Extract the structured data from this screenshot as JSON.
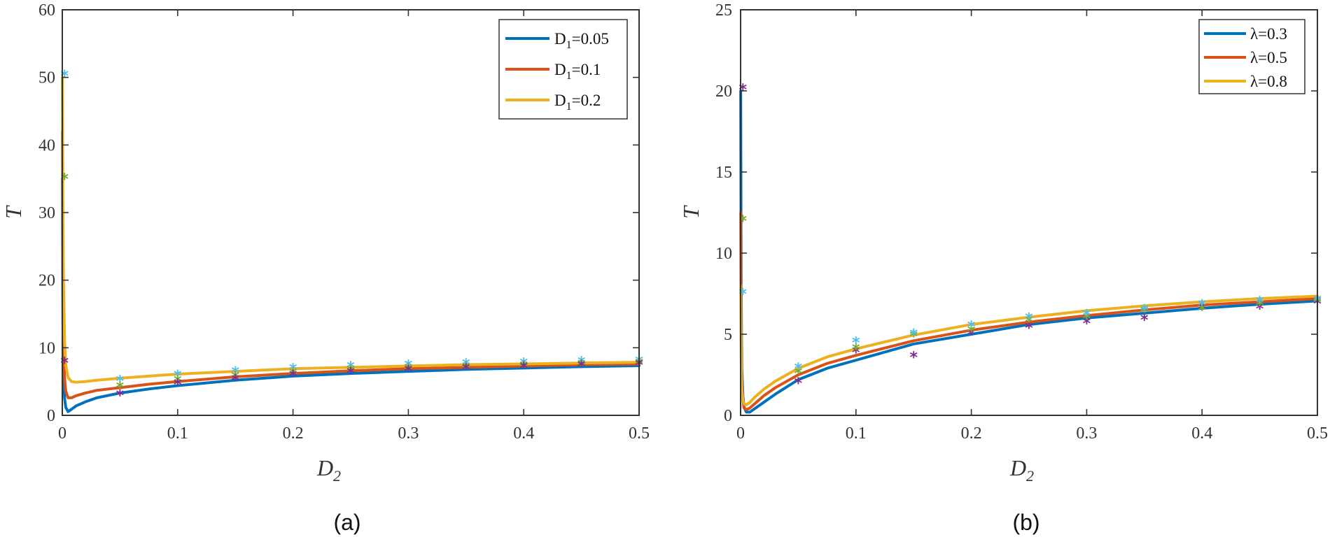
{
  "chart_data": [
    {
      "type": "line",
      "panel": "(a)",
      "xlabel": "D",
      "xlabel_sub": "2",
      "ylabel": "T",
      "xlim": [
        0,
        0.5
      ],
      "ylim": [
        0,
        60
      ],
      "xticks": [
        0,
        0.1,
        0.2,
        0.3,
        0.4,
        0.5
      ],
      "xtick_labels": [
        "0",
        "0.1",
        "0.2",
        "0.3",
        "0.4",
        "0.5"
      ],
      "yticks": [
        0,
        10,
        20,
        30,
        40,
        50,
        60
      ],
      "ytick_labels": [
        "0",
        "10",
        "20",
        "30",
        "40",
        "50",
        "60"
      ],
      "legend_position": "top-right",
      "series": [
        {
          "name": "D1=0.05",
          "label_main": "D",
          "label_sub": "1",
          "label_rest": "=0.05",
          "color": "#0072BD",
          "x": [
            0.0001,
            0.0005,
            0.001,
            0.002,
            0.003,
            0.005,
            0.008,
            0.012,
            0.02,
            0.03,
            0.05,
            0.075,
            0.1,
            0.15,
            0.2,
            0.25,
            0.3,
            0.35,
            0.4,
            0.45,
            0.5
          ],
          "y": [
            35,
            14,
            6,
            2.5,
            1.2,
            0.55,
            0.9,
            1.4,
            2.0,
            2.6,
            3.3,
            3.9,
            4.4,
            5.2,
            5.8,
            6.2,
            6.5,
            6.8,
            7.0,
            7.2,
            7.35
          ]
        },
        {
          "name": "D1=0.1",
          "label_main": "D",
          "label_sub": "1",
          "label_rest": "=0.1",
          "color": "#D95319",
          "x": [
            0.0001,
            0.0005,
            0.001,
            0.002,
            0.003,
            0.005,
            0.008,
            0.012,
            0.02,
            0.03,
            0.05,
            0.075,
            0.1,
            0.15,
            0.2,
            0.25,
            0.3,
            0.35,
            0.4,
            0.45,
            0.5
          ],
          "y": [
            42,
            20,
            10,
            5.5,
            3.6,
            2.6,
            2.6,
            2.9,
            3.3,
            3.7,
            4.1,
            4.6,
            5.0,
            5.7,
            6.2,
            6.6,
            6.9,
            7.1,
            7.3,
            7.5,
            7.6
          ]
        },
        {
          "name": "D1=0.2",
          "label_main": "D",
          "label_sub": "1",
          "label_rest": "=0.2",
          "color": "#EDB120",
          "x": [
            0.0001,
            0.0005,
            0.001,
            0.002,
            0.003,
            0.005,
            0.008,
            0.012,
            0.02,
            0.03,
            0.05,
            0.075,
            0.1,
            0.15,
            0.2,
            0.25,
            0.3,
            0.35,
            0.4,
            0.45,
            0.5
          ],
          "y": [
            50,
            32,
            20,
            11,
            7.5,
            5.6,
            5.0,
            4.9,
            5.0,
            5.2,
            5.5,
            5.8,
            6.1,
            6.5,
            6.9,
            7.1,
            7.3,
            7.5,
            7.6,
            7.75,
            7.85
          ]
        }
      ],
      "markers": [
        {
          "color": "#4DBEEE",
          "x": [
            0.002,
            0.05,
            0.1,
            0.15,
            0.2,
            0.25,
            0.3,
            0.35,
            0.4,
            0.45,
            0.5
          ],
          "y": [
            50.3,
            5.1,
            5.9,
            6.4,
            6.9,
            7.2,
            7.4,
            7.6,
            7.7,
            7.9,
            8.0
          ]
        },
        {
          "color": "#77AC30",
          "x": [
            0.002,
            0.05,
            0.1,
            0.15,
            0.2,
            0.25,
            0.3,
            0.35,
            0.4,
            0.45,
            0.5
          ],
          "y": [
            35.0,
            4.2,
            5.1,
            5.7,
            6.2,
            6.6,
            6.9,
            7.1,
            7.3,
            7.5,
            7.7
          ]
        },
        {
          "color": "#7E2F8E",
          "x": [
            0.002,
            0.05,
            0.1,
            0.15,
            0.2,
            0.25,
            0.3,
            0.35,
            0.4,
            0.45,
            0.5
          ],
          "y": [
            7.8,
            3.0,
            4.6,
            5.3,
            5.9,
            6.3,
            6.6,
            6.9,
            7.1,
            7.3,
            7.5
          ]
        }
      ]
    },
    {
      "type": "line",
      "panel": "(b)",
      "xlabel": "D",
      "xlabel_sub": "2",
      "ylabel": "T",
      "xlim": [
        0,
        0.5
      ],
      "ylim": [
        0,
        25
      ],
      "xticks": [
        0,
        0.1,
        0.2,
        0.3,
        0.4,
        0.5
      ],
      "xtick_labels": [
        "0",
        "0.1",
        "0.2",
        "0.3",
        "0.4",
        "0.5"
      ],
      "yticks": [
        0,
        5,
        10,
        15,
        20,
        25
      ],
      "ytick_labels": [
        "0",
        "5",
        "10",
        "15",
        "20",
        "25"
      ],
      "legend_position": "top-right",
      "series": [
        {
          "name": "λ=0.3",
          "label_main": "λ=0.3",
          "label_sub": "",
          "label_rest": "",
          "color": "#0072BD",
          "x": [
            0.0001,
            0.0005,
            0.001,
            0.002,
            0.003,
            0.005,
            0.008,
            0.012,
            0.02,
            0.03,
            0.05,
            0.075,
            0.1,
            0.15,
            0.2,
            0.25,
            0.3,
            0.35,
            0.4,
            0.45,
            0.5
          ],
          "y": [
            20,
            8,
            3,
            1.2,
            0.5,
            0.2,
            0.2,
            0.4,
            0.8,
            1.3,
            2.2,
            2.9,
            3.4,
            4.4,
            5.0,
            5.6,
            6.0,
            6.3,
            6.6,
            6.85,
            7.05
          ]
        },
        {
          "name": "λ=0.5",
          "label_main": "λ=0.5",
          "label_sub": "",
          "label_rest": "",
          "color": "#D95319",
          "x": [
            0.0001,
            0.0005,
            0.001,
            0.002,
            0.003,
            0.005,
            0.008,
            0.012,
            0.02,
            0.03,
            0.05,
            0.075,
            0.1,
            0.15,
            0.2,
            0.25,
            0.3,
            0.35,
            0.4,
            0.45,
            0.5
          ],
          "y": [
            12.5,
            5,
            2,
            0.9,
            0.45,
            0.35,
            0.45,
            0.7,
            1.2,
            1.7,
            2.5,
            3.2,
            3.7,
            4.6,
            5.25,
            5.75,
            6.15,
            6.5,
            6.8,
            7.0,
            7.2
          ]
        },
        {
          "name": "λ=0.8",
          "label_main": "λ=0.8",
          "label_sub": "",
          "label_rest": "",
          "color": "#EDB120",
          "x": [
            0.0001,
            0.0005,
            0.001,
            0.002,
            0.003,
            0.005,
            0.008,
            0.012,
            0.02,
            0.03,
            0.05,
            0.075,
            0.1,
            0.15,
            0.2,
            0.25,
            0.3,
            0.35,
            0.4,
            0.45,
            0.5
          ],
          "y": [
            8,
            3.5,
            1.6,
            0.9,
            0.7,
            0.65,
            0.8,
            1.1,
            1.6,
            2.1,
            2.9,
            3.6,
            4.1,
            4.95,
            5.6,
            6.05,
            6.45,
            6.75,
            7.0,
            7.2,
            7.35
          ]
        }
      ],
      "markers": [
        {
          "color": "#7E2F8E",
          "x": [
            0.002,
            0.05,
            0.1,
            0.15,
            0.2,
            0.25,
            0.3,
            0.35,
            0.4,
            0.45,
            0.5
          ],
          "y": [
            20.1,
            2.0,
            3.9,
            3.6,
            5.0,
            5.4,
            5.7,
            5.9,
            6.6,
            6.6,
            6.9
          ]
        },
        {
          "color": "#77AC30",
          "x": [
            0.002,
            0.05,
            0.1,
            0.15,
            0.2,
            0.25,
            0.3,
            0.35,
            0.4,
            0.45,
            0.5
          ],
          "y": [
            12.0,
            2.6,
            4.1,
            4.9,
            5.2,
            5.8,
            6.0,
            6.4,
            6.5,
            6.8,
            7.0
          ]
        },
        {
          "color": "#4DBEEE",
          "x": [
            0.002,
            0.05,
            0.1,
            0.15,
            0.2,
            0.25,
            0.3,
            0.35,
            0.4,
            0.45,
            0.5
          ],
          "y": [
            7.5,
            2.9,
            4.5,
            5.0,
            5.5,
            6.0,
            6.2,
            6.5,
            6.8,
            7.0,
            7.1
          ]
        }
      ]
    }
  ]
}
